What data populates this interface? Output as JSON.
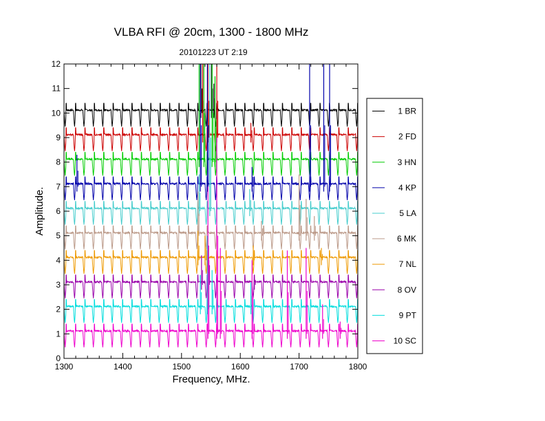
{
  "chart_data": {
    "type": "line",
    "title": "VLBA RFI @ 20cm, 1300 - 1800 MHz",
    "subtitle": "20101223   UT 2:19",
    "xlabel": "Frequency, MHz.",
    "ylabel": "Amplitude.",
    "xlim": [
      1300,
      1800
    ],
    "ylim": [
      0,
      12
    ],
    "x_ticks": [
      "1300",
      "1400",
      "1500",
      "1600",
      "1700",
      "1800"
    ],
    "y_ticks": [
      "0",
      "1",
      "2",
      "3",
      "4",
      "5",
      "6",
      "7",
      "8",
      "9",
      "10",
      "11",
      "12"
    ],
    "legend_position": "right",
    "channel_spacing_mhz": 16,
    "series": [
      {
        "name": "1 BR",
        "color": "#000000",
        "baseline": 10.0,
        "spikes": [
          [
            1533,
            12
          ],
          [
            1551,
            12
          ],
          [
            1555,
            11.2
          ]
        ]
      },
      {
        "name": "2 FD",
        "color": "#cc0000",
        "baseline": 9.0,
        "spikes": [
          [
            1536,
            12
          ],
          [
            1545,
            12
          ],
          [
            1560,
            12
          ],
          [
            1618,
            9.6
          ]
        ]
      },
      {
        "name": "3 HN",
        "color": "#00cc00",
        "baseline": 8.0,
        "spikes": [
          [
            1530,
            12
          ],
          [
            1538,
            12
          ],
          [
            1552,
            12
          ],
          [
            1557,
            11.5
          ]
        ]
      },
      {
        "name": "4 KP",
        "color": "#0000aa",
        "baseline": 7.0,
        "spikes": [
          [
            1322,
            8.3
          ],
          [
            1532,
            12
          ],
          [
            1544,
            12
          ],
          [
            1620,
            7.8
          ],
          [
            1718,
            12
          ],
          [
            1742,
            12
          ],
          [
            1752,
            12
          ]
        ]
      },
      {
        "name": "5 LA",
        "color": "#44cccc",
        "baseline": 6.0,
        "spikes": [
          [
            1530,
            7.5
          ],
          [
            1548,
            12
          ],
          [
            1616,
            6.9
          ]
        ]
      },
      {
        "name": "6 MK",
        "color": "#bb9988",
        "baseline": 5.0,
        "spikes": [
          [
            1528,
            6.8
          ],
          [
            1636,
            5.6
          ],
          [
            1700,
            7.5
          ],
          [
            1712,
            6.5
          ],
          [
            1726,
            5.8
          ]
        ]
      },
      {
        "name": "7 NL",
        "color": "#ee9900",
        "baseline": 4.0,
        "spikes": [
          [
            1528,
            5.2
          ],
          [
            1540,
            5.0
          ],
          [
            1622,
            4.6
          ],
          [
            1738,
            4.5
          ]
        ]
      },
      {
        "name": "8 OV",
        "color": "#9900aa",
        "baseline": 3.0,
        "spikes": [
          [
            1534,
            4.2
          ],
          [
            1546,
            4.6
          ],
          [
            1624,
            3.4
          ]
        ]
      },
      {
        "name": "9 PT",
        "color": "#00dddd",
        "baseline": 2.0,
        "spikes": [
          [
            1532,
            3.4
          ],
          [
            1544,
            5.0
          ],
          [
            1552,
            3.6
          ],
          [
            1618,
            3.1
          ]
        ]
      },
      {
        "name": "10 SC",
        "color": "#ee00cc",
        "baseline": 1.0,
        "spikes": [
          [
            1545,
            7.0
          ],
          [
            1560,
            9.0
          ],
          [
            1566,
            4.5
          ],
          [
            1620,
            4.0
          ],
          [
            1680,
            4.4
          ],
          [
            1712,
            4.5
          ],
          [
            1740,
            2.2
          ],
          [
            1770,
            1.5
          ]
        ]
      }
    ]
  }
}
